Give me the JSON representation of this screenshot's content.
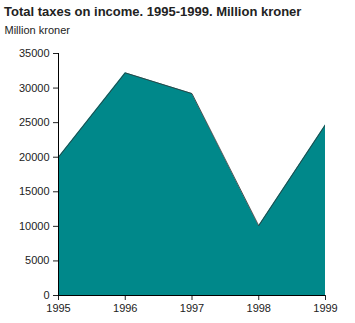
{
  "chart_data": {
    "type": "area",
    "title": "Total taxes on income. 1995-1999. Million kroner",
    "y_label": "Million kroner",
    "x": [
      1995,
      1996,
      1997,
      1998,
      1999
    ],
    "values": [
      20000,
      32200,
      29200,
      10100,
      24700
    ],
    "color": "#00888a",
    "xlim": [
      1995,
      1999
    ],
    "xticks": [
      1995,
      1996,
      1997,
      1998,
      1999
    ],
    "ylim": [
      0,
      35000
    ],
    "yticks": [
      0,
      5000,
      10000,
      15000,
      20000,
      25000,
      30000,
      35000
    ],
    "grid": false
  }
}
